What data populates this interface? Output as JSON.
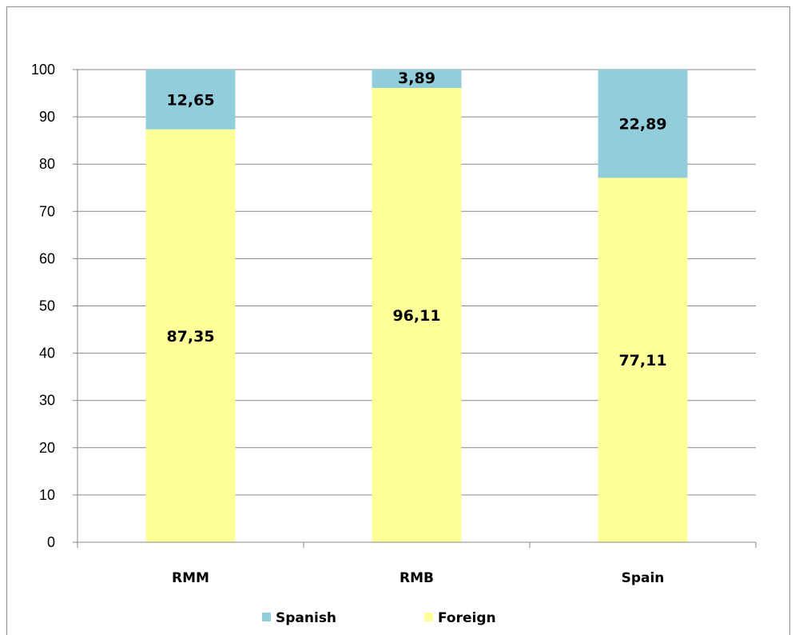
{
  "chart_data": {
    "type": "bar",
    "stacked": true,
    "categories": [
      "RMM",
      "RMB",
      "Spain"
    ],
    "series": [
      {
        "name": "Foreign",
        "values": [
          87.35,
          96.11,
          77.11
        ],
        "labels": [
          "87,35",
          "96,11",
          "77,11"
        ],
        "color": "#ffff99"
      },
      {
        "name": "Spanish",
        "values": [
          12.65,
          3.89,
          22.89
        ],
        "labels": [
          "12,65",
          "3,89",
          "22,89"
        ],
        "color": "#92cddc"
      }
    ],
    "legend_order": [
      "Spanish",
      "Foreign"
    ],
    "ylim": [
      0,
      100
    ],
    "yticks": [
      "0",
      "10",
      "20",
      "30",
      "40",
      "50",
      "60",
      "70",
      "80",
      "90",
      "100"
    ],
    "grid": true,
    "legend_position": "bottom",
    "title": "",
    "xlabel": "",
    "ylabel": ""
  }
}
